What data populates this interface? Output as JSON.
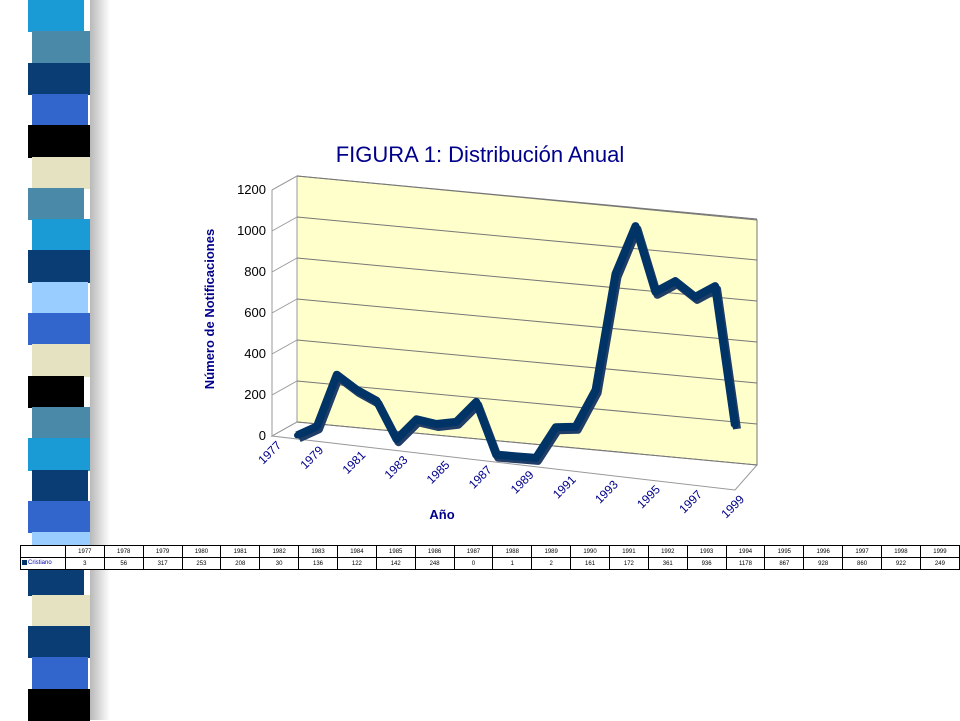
{
  "colors": {
    "series": "#003366",
    "wall": "#ffffcc",
    "axis_text": "#00008b"
  },
  "sidebar": {
    "icon": "decorative-color-strip",
    "block_colors": [
      "#1a9bd6",
      "#4a8aa8",
      "#0a3d73",
      "#3366cc",
      "#000000",
      "#e4e2c0",
      "#4a8aa8",
      "#1a9bd6",
      "#0a3d73",
      "#99ccff",
      "#3366cc",
      "#e4e2c0",
      "#000000",
      "#4a8aa8",
      "#1a9bd6",
      "#0a3d73",
      "#3366cc",
      "#99ccff",
      "#0a3d73",
      "#e4e2c0",
      "#0a3d73",
      "#3366cc",
      "#000000"
    ]
  },
  "chart_data": {
    "type": "line",
    "title": "FIGURA 1: Distribución Anual",
    "xlabel": "Año",
    "ylabel": "Número de Notificaciones",
    "ylim": [
      0,
      1200
    ],
    "yticks": [
      "0",
      "200",
      "400",
      "600",
      "800",
      "1000",
      "1200"
    ],
    "x_tick_labels": [
      "1977",
      "1979",
      "1981",
      "1983",
      "1985",
      "1987",
      "1989",
      "1991",
      "1993",
      "1995",
      "1997",
      "1999"
    ],
    "categories": [
      "1977",
      "1978",
      "1979",
      "1980",
      "1981",
      "1982",
      "1983",
      "1984",
      "1985",
      "1986",
      "1987",
      "1988",
      "1989",
      "1990",
      "1991",
      "1992",
      "1993",
      "1994",
      "1995",
      "1996",
      "1997",
      "1998",
      "1999"
    ],
    "series": [
      {
        "name": "Cristiano",
        "values": [
          3,
          56,
          317,
          253,
          208,
          30,
          136,
          122,
          142,
          248,
          0,
          1,
          2,
          161,
          172,
          361,
          936,
          1178,
          867,
          928,
          860,
          922,
          249
        ]
      }
    ],
    "style": "3d",
    "grid": true,
    "data_table": true
  }
}
